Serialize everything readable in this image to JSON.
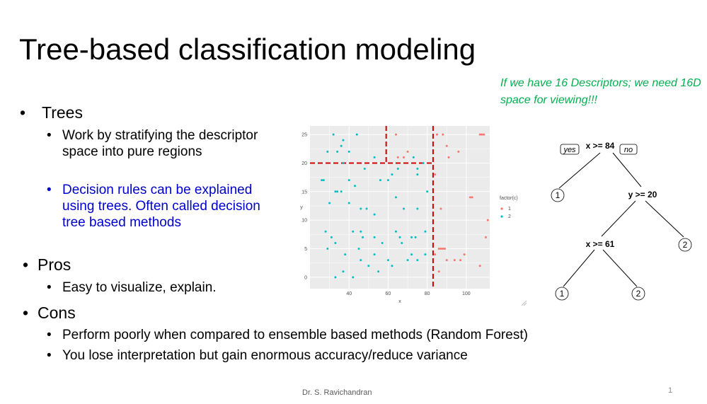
{
  "slide": {
    "title": "Tree-based classification modeling",
    "note": "If we have 16 Descriptors; we need 16D space for viewing!!!",
    "bullets": {
      "trees": "Trees",
      "trees_sub1_line1": "Work by stratifying the descriptor",
      "trees_sub1_line2": "space into pure regions",
      "trees_sub2_line1": "Decision rules can be explained",
      "trees_sub2_line2": "using trees. Often called decision",
      "trees_sub2_line3": "tree based methods",
      "pros": "Pros",
      "pros_sub1": "Easy to visualize, explain.",
      "cons": "Cons",
      "cons_sub1": "Perform poorly when compared to ensemble based methods (Random Forest)",
      "cons_sub2": "You lose interpretation but gain enormous accuracy/reduce variance"
    },
    "footer": "Dr. S. Ravichandran",
    "page_number": "1"
  },
  "colors": {
    "note": "#00B050",
    "blue_text": "#0000CC",
    "class1": "#F8766D",
    "class2": "#00BFC4",
    "split_line": "#D00000",
    "panel": "#EBEBEB"
  },
  "tree": {
    "root": "x >= 84",
    "yes": "yes",
    "no": "no",
    "node_right": "y >= 20",
    "node_left": "x >= 61",
    "leaf_root_left": "1",
    "leaf_right_right": "2",
    "leaf_left_left": "1",
    "leaf_left_right": "2"
  },
  "chart_data": {
    "type": "scatter",
    "xlabel": "x",
    "ylabel": "y",
    "xlim": [
      20,
      112
    ],
    "ylim": [
      -2,
      26.5
    ],
    "x_ticks": [
      40,
      60,
      80,
      100
    ],
    "y_ticks": [
      0,
      5,
      10,
      15,
      20,
      25
    ],
    "legend_title": "factor(c)",
    "legend_position": "right",
    "splits": {
      "x_main": 83,
      "y_upper": 20,
      "x_upper": 59
    },
    "series": [
      {
        "name": "1",
        "color": "#F8766D",
        "points": [
          [
            64,
            25
          ],
          [
            85,
            25
          ],
          [
            88,
            25
          ],
          [
            107,
            25
          ],
          [
            108,
            25
          ],
          [
            109,
            25
          ],
          [
            90,
            23
          ],
          [
            96,
            22
          ],
          [
            91,
            21
          ],
          [
            65,
            21
          ],
          [
            68,
            21
          ],
          [
            70,
            22
          ],
          [
            84,
            18
          ],
          [
            102,
            14
          ],
          [
            103,
            14
          ],
          [
            87,
            12
          ],
          [
            111,
            10
          ],
          [
            86,
            5
          ],
          [
            87,
            5
          ],
          [
            88,
            5
          ],
          [
            89,
            5
          ],
          [
            84,
            4
          ],
          [
            99,
            4
          ],
          [
            90,
            3
          ],
          [
            94,
            3
          ],
          [
            97,
            3
          ],
          [
            107,
            2
          ],
          [
            110,
            7
          ],
          [
            86,
            1
          ]
        ]
      },
      {
        "name": "2",
        "color": "#00BFC4",
        "points": [
          [
            32,
            25
          ],
          [
            37,
            24
          ],
          [
            44,
            25
          ],
          [
            29,
            22
          ],
          [
            34,
            22
          ],
          [
            36,
            23
          ],
          [
            40,
            22
          ],
          [
            53,
            21
          ],
          [
            37,
            20
          ],
          [
            48,
            19
          ],
          [
            26,
            17
          ],
          [
            27,
            17
          ],
          [
            33,
            15
          ],
          [
            36,
            15
          ],
          [
            40,
            17
          ],
          [
            34,
            15
          ],
          [
            43,
            16
          ],
          [
            56,
            17
          ],
          [
            60,
            17
          ],
          [
            62,
            18
          ],
          [
            65,
            19
          ],
          [
            73,
            21
          ],
          [
            75,
            19
          ],
          [
            75,
            18
          ],
          [
            78,
            20
          ],
          [
            30,
            13
          ],
          [
            40,
            13
          ],
          [
            46,
            12
          ],
          [
            49,
            12
          ],
          [
            53,
            11
          ],
          [
            64,
            14
          ],
          [
            68,
            12
          ],
          [
            75,
            12
          ],
          [
            80,
            15
          ],
          [
            28,
            8
          ],
          [
            31,
            7
          ],
          [
            33,
            6
          ],
          [
            42,
            8
          ],
          [
            46,
            8
          ],
          [
            47,
            7
          ],
          [
            45,
            5
          ],
          [
            53,
            7
          ],
          [
            57,
            6
          ],
          [
            64,
            8
          ],
          [
            67,
            6
          ],
          [
            72,
            7
          ],
          [
            74,
            7
          ],
          [
            79,
            8
          ],
          [
            29,
            5
          ],
          [
            38,
            4
          ],
          [
            46,
            3
          ],
          [
            50,
            2
          ],
          [
            53,
            4
          ],
          [
            60,
            3
          ],
          [
            62,
            2
          ],
          [
            66,
            7
          ],
          [
            70,
            3
          ],
          [
            72,
            4
          ],
          [
            75,
            3
          ],
          [
            79,
            4
          ],
          [
            33,
            0
          ],
          [
            37,
            1
          ],
          [
            42,
            0
          ],
          [
            55,
            1
          ]
        ]
      }
    ]
  }
}
